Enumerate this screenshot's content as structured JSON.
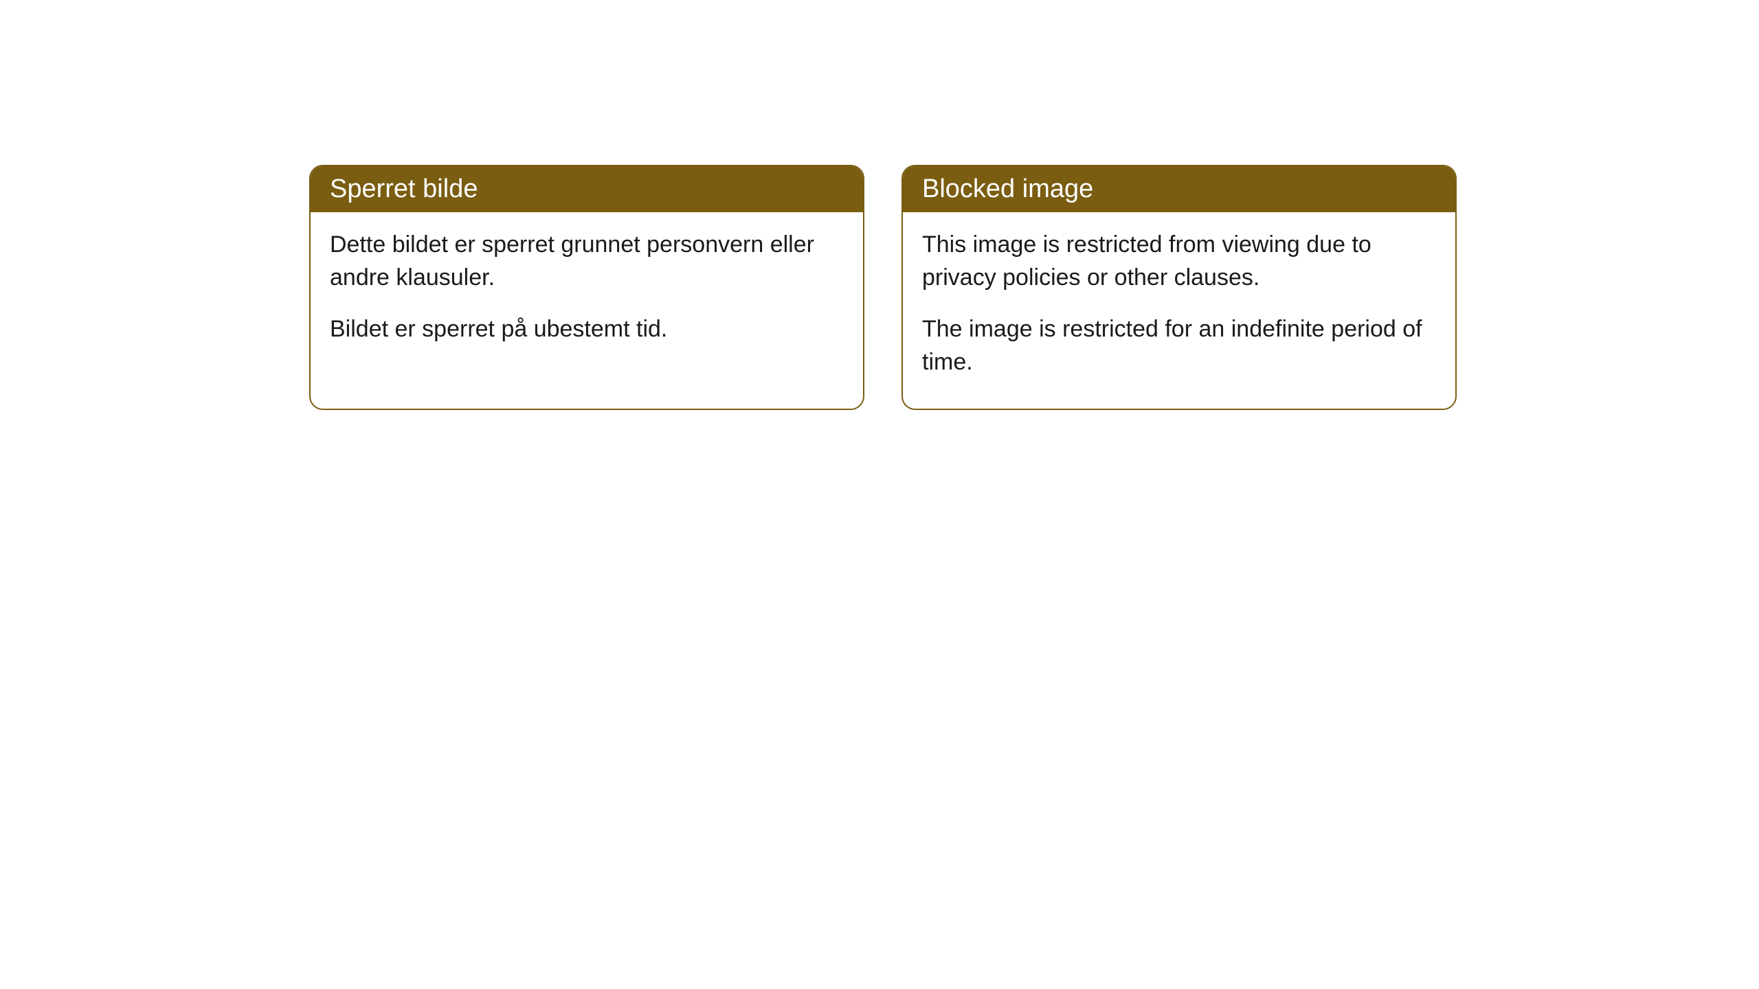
{
  "cards": [
    {
      "title": "Sperret bilde",
      "paragraph1": "Dette bildet er sperret grunnet personvern eller andre klausuler.",
      "paragraph2": "Bildet er sperret på ubestemt tid."
    },
    {
      "title": "Blocked image",
      "paragraph1": "This image is restricted from viewing due to privacy policies or other clauses.",
      "paragraph2": "The image is restricted for an indefinite period of time."
    }
  ],
  "colors": {
    "background": "#ffffff",
    "header_bg": "#7a5d11",
    "header_text": "#ffffff",
    "border": "#7a5d11",
    "body_text": "#1a1a1a"
  }
}
